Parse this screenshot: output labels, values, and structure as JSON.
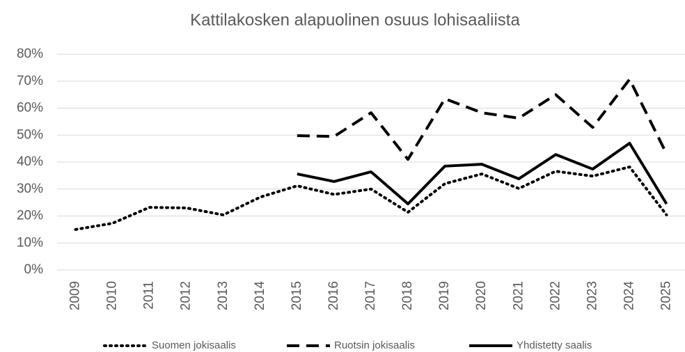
{
  "chart_data": {
    "type": "line",
    "title": "Kattilakosken alapuolinen osuus lohisaaliista",
    "categories": [
      "2009",
      "2010",
      "2011",
      "2012",
      "2013",
      "2014",
      "2015",
      "2016",
      "2017",
      "2018",
      "2019",
      "2020",
      "2021",
      "2022",
      "2023",
      "2024",
      "2025"
    ],
    "series": [
      {
        "name": "Suomen jokisaalis",
        "color": "#000000",
        "dash": "dotted",
        "values": [
          15.0,
          17.3,
          23.2,
          23.0,
          20.4,
          27.0,
          31.2,
          28.0,
          30.0,
          21.4,
          32.0,
          35.6,
          30.2,
          36.6,
          34.8,
          38.2,
          20.4
        ]
      },
      {
        "name": "Ruotsin jokisaalis",
        "color": "#000000",
        "dash": "dashed",
        "values": [
          null,
          null,
          null,
          null,
          null,
          null,
          49.8,
          49.5,
          58.3,
          41.0,
          63.5,
          58.3,
          56.3,
          65.0,
          52.9,
          70.7,
          43.1
        ]
      },
      {
        "name": "Yhdistetty saalis",
        "color": "#000000",
        "dash": "solid",
        "values": [
          null,
          null,
          null,
          null,
          null,
          null,
          35.6,
          32.8,
          36.4,
          24.5,
          38.5,
          39.2,
          33.8,
          42.8,
          37.4,
          47.0,
          24.5
        ]
      }
    ],
    "ylim": [
      0,
      80
    ],
    "yticks": [
      {
        "value": 0,
        "label": "0%"
      },
      {
        "value": 10,
        "label": "10%"
      },
      {
        "value": 20,
        "label": "20%"
      },
      {
        "value": 30,
        "label": "30%"
      },
      {
        "value": 40,
        "label": "40%"
      },
      {
        "value": 50,
        "label": "50%"
      },
      {
        "value": 60,
        "label": "60%"
      },
      {
        "value": 70,
        "label": "70%"
      },
      {
        "value": 80,
        "label": "80%"
      }
    ],
    "grid": true,
    "legend": "bottom"
  }
}
